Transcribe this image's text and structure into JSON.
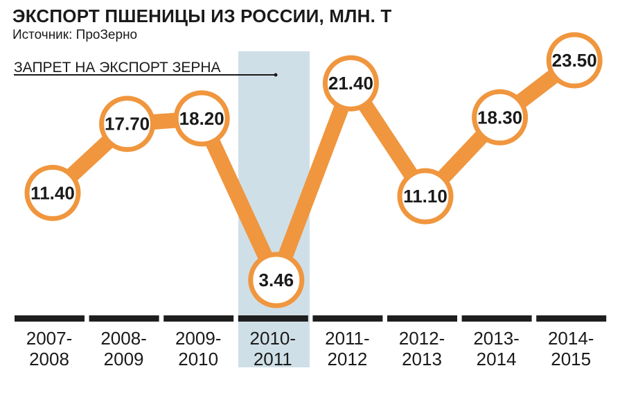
{
  "chart_data": {
    "type": "line",
    "title": "ЭКСПОРТ ПШЕНИЦЫ ИЗ РОССИИ, МЛН. Т",
    "subtitle": "Источник: ПроЗерно",
    "categories": [
      [
        "2007-",
        "2008"
      ],
      [
        "2008-",
        "2009"
      ],
      [
        "2009-",
        "2010"
      ],
      [
        "2010-",
        "2011"
      ],
      [
        "2011-",
        "2012"
      ],
      [
        "2012-",
        "2013"
      ],
      [
        "2013-",
        "2014"
      ],
      [
        "2014-",
        "2015"
      ]
    ],
    "values": [
      11.4,
      17.7,
      18.2,
      3.46,
      21.4,
      11.1,
      18.3,
      23.5
    ],
    "value_labels": [
      "11.40",
      "17.70",
      "18.20",
      "3.46",
      "21.40",
      "11.10",
      "18.30",
      "23.50"
    ],
    "ylim": [
      0,
      26
    ],
    "grid": false,
    "annotations": [
      {
        "text": "ЗАПРЕТ НА ЭКСПОРТ ЗЕРНА",
        "highlight_category_index": 3
      }
    ],
    "colors": {
      "line": "#f0963e",
      "marker_border": "#f0963e",
      "marker_fill": "#ffffff",
      "highlight": "#cfdfe7",
      "axis_bar": "#1e1e1e",
      "text": "#1a1a1a"
    }
  }
}
